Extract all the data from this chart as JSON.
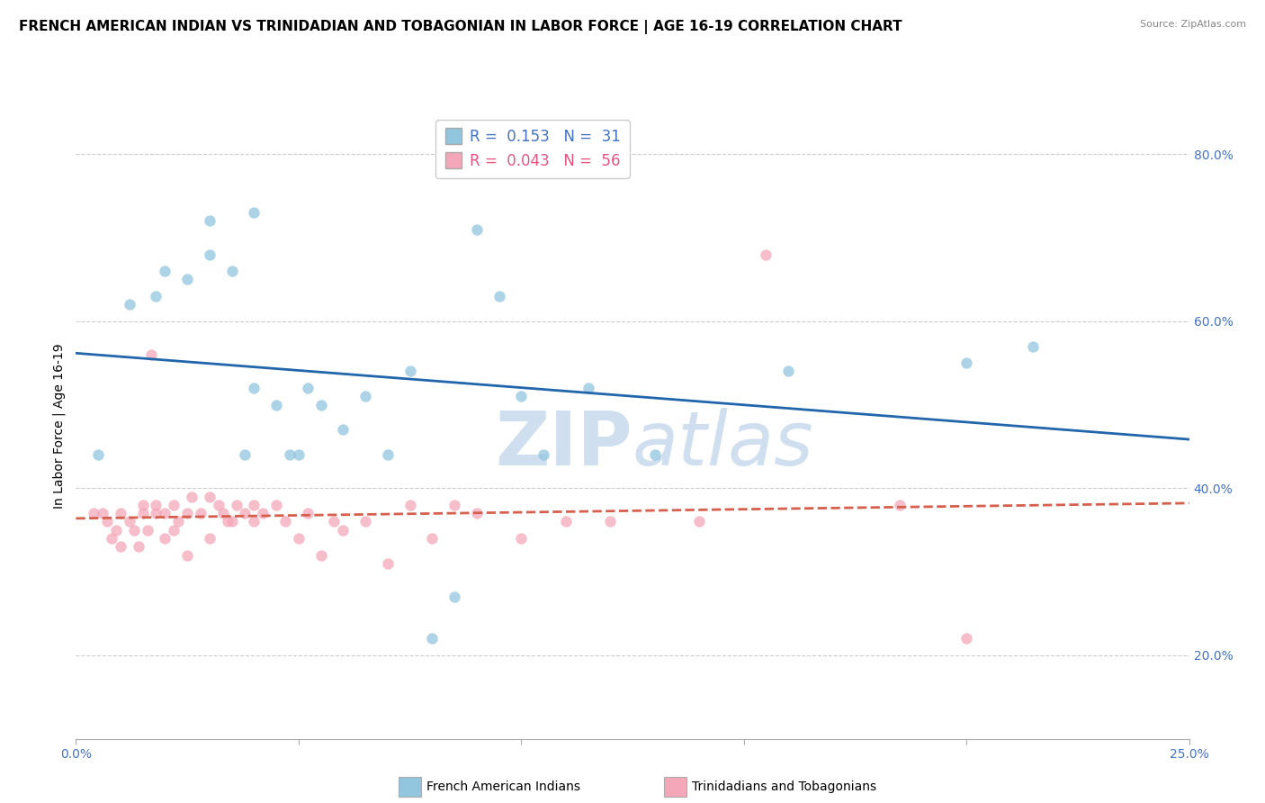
{
  "title": "FRENCH AMERICAN INDIAN VS TRINIDADIAN AND TOBAGONIAN IN LABOR FORCE | AGE 16-19 CORRELATION CHART",
  "source": "Source: ZipAtlas.com",
  "ylabel": "In Labor Force | Age 16-19",
  "xlim": [
    0.0,
    0.25
  ],
  "ylim": [
    0.1,
    0.85
  ],
  "xticks": [
    0.0,
    0.05,
    0.1,
    0.15,
    0.2,
    0.25
  ],
  "xticklabels": [
    "0.0%",
    "",
    "",
    "",
    "",
    "25.0%"
  ],
  "yticks": [
    0.2,
    0.4,
    0.6,
    0.8
  ],
  "yticklabels": [
    "20.0%",
    "40.0%",
    "60.0%",
    "80.0%"
  ],
  "blue_R": 0.153,
  "blue_N": 31,
  "pink_R": 0.043,
  "pink_N": 56,
  "blue_color": "#92c5de",
  "pink_color": "#f4a7b9",
  "blue_line_color": "#2166ac",
  "pink_line_color": "#d6604d",
  "blue_legend_color": "#4472c4",
  "pink_legend_color": "#e75480",
  "watermark_color": "#d0dff0",
  "legend_label_blue": "French American Indians",
  "legend_label_pink": "Trinidadians and Tobagonians",
  "blue_scatter_x": [
    0.005,
    0.012,
    0.018,
    0.02,
    0.025,
    0.03,
    0.03,
    0.035,
    0.038,
    0.04,
    0.04,
    0.045,
    0.048,
    0.05,
    0.052,
    0.055,
    0.06,
    0.065,
    0.07,
    0.075,
    0.08,
    0.085,
    0.09,
    0.095,
    0.1,
    0.105,
    0.115,
    0.13,
    0.16,
    0.2,
    0.215
  ],
  "blue_scatter_y": [
    0.44,
    0.62,
    0.63,
    0.66,
    0.65,
    0.72,
    0.68,
    0.66,
    0.44,
    0.73,
    0.52,
    0.5,
    0.44,
    0.44,
    0.52,
    0.5,
    0.47,
    0.51,
    0.44,
    0.54,
    0.22,
    0.27,
    0.71,
    0.63,
    0.51,
    0.44,
    0.52,
    0.44,
    0.54,
    0.55,
    0.57
  ],
  "pink_scatter_x": [
    0.004,
    0.006,
    0.007,
    0.008,
    0.009,
    0.01,
    0.01,
    0.012,
    0.013,
    0.014,
    0.015,
    0.015,
    0.016,
    0.017,
    0.018,
    0.018,
    0.02,
    0.02,
    0.022,
    0.022,
    0.023,
    0.025,
    0.025,
    0.026,
    0.028,
    0.03,
    0.03,
    0.032,
    0.033,
    0.034,
    0.035,
    0.036,
    0.038,
    0.04,
    0.04,
    0.042,
    0.045,
    0.047,
    0.05,
    0.052,
    0.055,
    0.058,
    0.06,
    0.065,
    0.07,
    0.075,
    0.08,
    0.085,
    0.09,
    0.1,
    0.11,
    0.12,
    0.14,
    0.155,
    0.185,
    0.2
  ],
  "pink_scatter_y": [
    0.37,
    0.37,
    0.36,
    0.34,
    0.35,
    0.37,
    0.33,
    0.36,
    0.35,
    0.33,
    0.38,
    0.37,
    0.35,
    0.56,
    0.37,
    0.38,
    0.34,
    0.37,
    0.38,
    0.35,
    0.36,
    0.37,
    0.32,
    0.39,
    0.37,
    0.39,
    0.34,
    0.38,
    0.37,
    0.36,
    0.36,
    0.38,
    0.37,
    0.36,
    0.38,
    0.37,
    0.38,
    0.36,
    0.34,
    0.37,
    0.32,
    0.36,
    0.35,
    0.36,
    0.31,
    0.38,
    0.34,
    0.38,
    0.37,
    0.34,
    0.36,
    0.36,
    0.36,
    0.68,
    0.38,
    0.22
  ],
  "background_color": "#ffffff",
  "grid_color": "#cccccc",
  "title_fontsize": 11,
  "axis_fontsize": 10,
  "tick_fontsize": 10,
  "marker_size": 80
}
